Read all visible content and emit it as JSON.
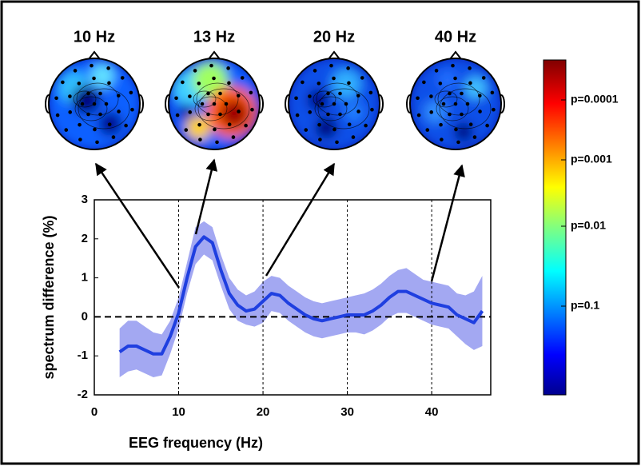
{
  "chart_data": {
    "type": "line",
    "x": [
      3,
      4,
      5,
      6,
      7,
      8,
      9,
      10,
      11,
      12,
      13,
      14,
      15,
      16,
      17,
      18,
      19,
      20,
      21,
      22,
      23,
      24,
      25,
      26,
      27,
      28,
      29,
      30,
      31,
      32,
      33,
      34,
      35,
      36,
      37,
      38,
      39,
      40,
      41,
      42,
      43,
      44,
      45,
      46
    ],
    "values": [
      -0.9,
      -0.75,
      -0.75,
      -0.85,
      -0.95,
      -0.95,
      -0.5,
      0.1,
      1.0,
      1.8,
      2.05,
      1.9,
      1.2,
      0.6,
      0.3,
      0.15,
      0.2,
      0.4,
      0.6,
      0.55,
      0.35,
      0.2,
      0.05,
      -0.05,
      -0.1,
      -0.05,
      0.0,
      0.05,
      0.05,
      0.05,
      0.15,
      0.3,
      0.5,
      0.65,
      0.65,
      0.55,
      0.45,
      0.35,
      0.3,
      0.25,
      0.05,
      -0.05,
      -0.15,
      0.15
    ],
    "upper": [
      -0.3,
      -0.1,
      -0.1,
      -0.25,
      -0.4,
      -0.45,
      -0.1,
      0.5,
      1.4,
      2.3,
      2.45,
      2.3,
      1.6,
      1.0,
      0.7,
      0.55,
      0.65,
      0.9,
      1.05,
      1.0,
      0.8,
      0.65,
      0.5,
      0.4,
      0.35,
      0.4,
      0.45,
      0.5,
      0.55,
      0.6,
      0.7,
      0.85,
      1.05,
      1.2,
      1.25,
      1.1,
      0.95,
      0.9,
      0.85,
      0.8,
      0.6,
      0.55,
      0.65,
      1.05
    ],
    "lower": [
      -1.55,
      -1.4,
      -1.35,
      -1.45,
      -1.55,
      -1.5,
      -0.95,
      -0.3,
      0.6,
      1.35,
      1.6,
      1.45,
      0.8,
      0.2,
      -0.1,
      -0.2,
      -0.25,
      -0.15,
      0.15,
      0.1,
      -0.1,
      -0.25,
      -0.4,
      -0.5,
      -0.55,
      -0.5,
      -0.45,
      -0.4,
      -0.4,
      -0.45,
      -0.35,
      -0.2,
      0.0,
      0.1,
      0.1,
      0.0,
      -0.1,
      -0.2,
      -0.25,
      -0.3,
      -0.5,
      -0.7,
      -0.85,
      -0.75
    ],
    "color": "#1f3fe0",
    "band_color": "#a3a8f2",
    "xlim": [
      0,
      47
    ],
    "ylim": [
      -2,
      3
    ],
    "xticks": [
      0,
      10,
      20,
      30,
      40
    ],
    "yticks": [
      -2,
      -1,
      0,
      1,
      2,
      3
    ],
    "xlabel": "EEG frequency (Hz)",
    "ylabel": "spectrum difference (%)",
    "grid": true,
    "topomap_titles": [
      "10 Hz",
      "13 Hz",
      "20 Hz",
      "40 Hz"
    ],
    "colorbar_labels": [
      "p=0.0001",
      "p=0.001",
      "p=0.01",
      "p=0.1"
    ]
  }
}
